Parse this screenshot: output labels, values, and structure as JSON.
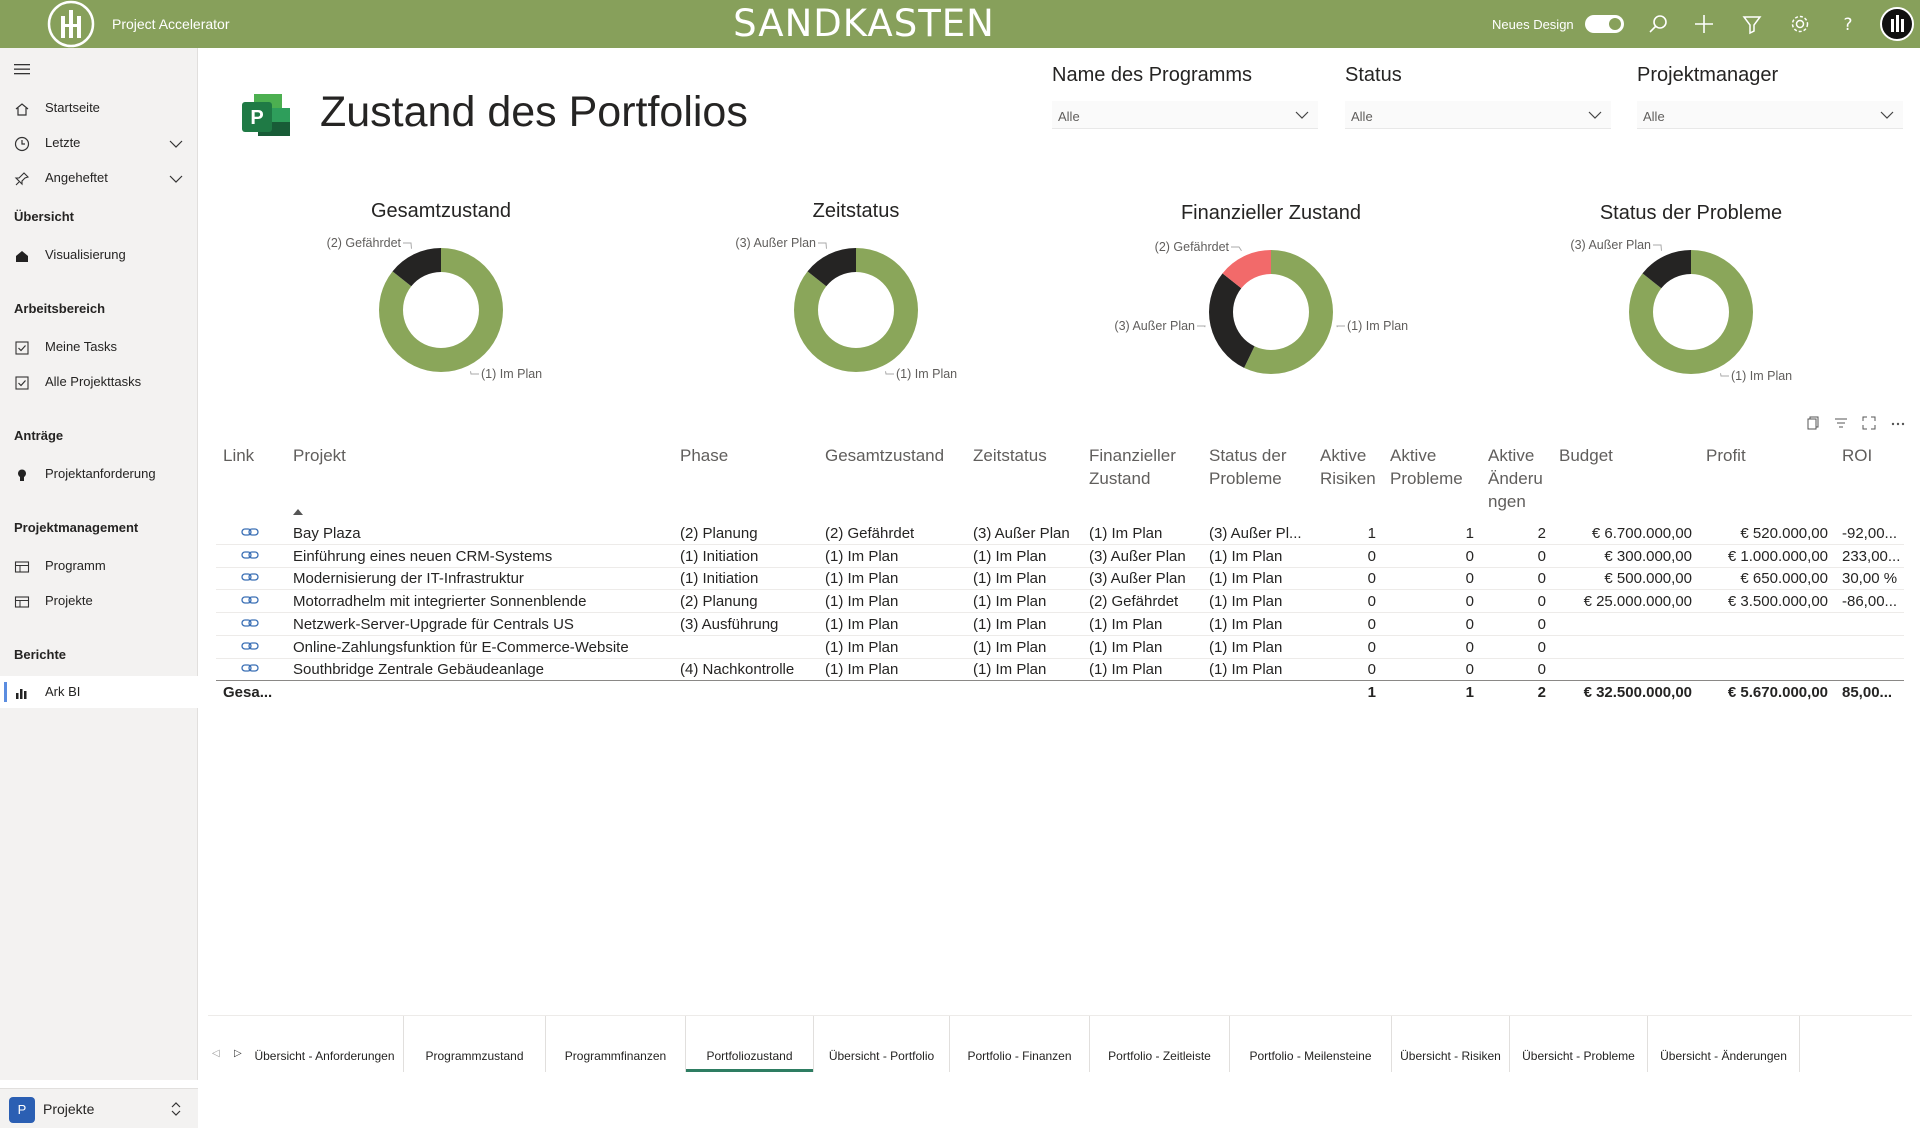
{
  "header": {
    "app_name": "Project Accelerator",
    "environment_title": "SANDKASTEN",
    "new_design_label": "Neues Design",
    "new_design_on": true,
    "icons": [
      "search-icon",
      "add-icon",
      "filter-icon",
      "gear-icon",
      "help-icon"
    ],
    "bg_color": "#87a05b"
  },
  "sidebar": {
    "items": [
      {
        "label": "Startseite",
        "icon": "home-icon"
      },
      {
        "label": "Letzte",
        "icon": "clock-icon"
      },
      {
        "label": "Angeheftet",
        "icon": "pin-icon"
      }
    ],
    "sections": [
      {
        "title": "Übersicht",
        "items": [
          {
            "label": "Visualisierung",
            "icon": "home-solid-icon"
          }
        ]
      },
      {
        "title": "Arbeitsbereich",
        "items": [
          {
            "label": "Meine Tasks",
            "icon": "checkbox-icon"
          },
          {
            "label": "Alle Projekttasks",
            "icon": "checkbox-icon"
          }
        ]
      },
      {
        "title": "Anträge",
        "items": [
          {
            "label": "Projektanforderung",
            "icon": "bulb-icon"
          }
        ]
      },
      {
        "title": "Projektmanagement",
        "items": [
          {
            "label": "Programm",
            "icon": "board-icon"
          },
          {
            "label": "Projekte",
            "icon": "board-icon"
          }
        ]
      },
      {
        "title": "Berichte",
        "items": [
          {
            "label": "Ark BI",
            "icon": "bar-chart-icon"
          }
        ]
      }
    ],
    "switcher": {
      "badge": "P",
      "label": "Projekte"
    }
  },
  "report": {
    "title": "Zustand des Portfolios",
    "filters": [
      {
        "label": "Name des Programms",
        "value": "Alle"
      },
      {
        "label": "Status",
        "value": "Alle"
      },
      {
        "label": "Projektmanager",
        "value": "Alle"
      }
    ]
  },
  "chart_data": [
    {
      "type": "pie",
      "title": "Gesamtzustand",
      "labels": [
        "(1) Im Plan",
        "(2) Gefährdet"
      ],
      "values": [
        6,
        1
      ],
      "colors": [
        "#8aa65a",
        "#252423"
      ]
    },
    {
      "type": "pie",
      "title": "Zeitstatus",
      "labels": [
        "(1) Im Plan",
        "(3) Außer Plan"
      ],
      "values": [
        6,
        1
      ],
      "colors": [
        "#8aa65a",
        "#252423"
      ]
    },
    {
      "type": "pie",
      "title": "Finanzieller Zustand",
      "labels": [
        "(1) Im Plan",
        "(3) Außer Plan",
        "(2) Gefährdet"
      ],
      "values": [
        4,
        2,
        1
      ],
      "colors": [
        "#8aa65a",
        "#252423",
        "#f26a6a"
      ]
    },
    {
      "type": "pie",
      "title": "Status der Probleme",
      "labels": [
        "(1) Im Plan",
        "(3) Außer Plan"
      ],
      "values": [
        6,
        1
      ],
      "colors": [
        "#8aa65a",
        "#252423"
      ]
    }
  ],
  "table": {
    "headers": [
      "Link",
      "Projekt",
      "Phase",
      "Gesamtzustand",
      "Zeitstatus",
      "Finanzieller Zustand",
      "Status der Probleme",
      "Aktive Risiken",
      "Aktive Probleme",
      "Aktive Änderungen",
      "Budget",
      "Profit",
      "ROI"
    ],
    "rows": [
      {
        "project": "Bay Plaza",
        "phase": "(2) Planung",
        "overall": "(2) Gefährdet",
        "time": "(3) Außer Plan",
        "financial": "(1) Im Plan",
        "issues": "(3) Außer Pl...",
        "risks": "1",
        "problems": "1",
        "changes": "2",
        "budget": "€ 6.700.000,00",
        "profit": "€ 520.000,00",
        "roi": "-92,00..."
      },
      {
        "project": "Einführung eines neuen CRM-Systems",
        "phase": "(1) Initiation",
        "overall": "(1) Im Plan",
        "time": "(1) Im Plan",
        "financial": "(3) Außer Plan",
        "issues": "(1) Im Plan",
        "risks": "0",
        "problems": "0",
        "changes": "0",
        "budget": "€ 300.000,00",
        "profit": "€ 1.000.000,00",
        "roi": "233,00..."
      },
      {
        "project": "Modernisierung der IT-Infrastruktur",
        "phase": "(1) Initiation",
        "overall": "(1) Im Plan",
        "time": "(1) Im Plan",
        "financial": "(3) Außer Plan",
        "issues": "(1) Im Plan",
        "risks": "0",
        "problems": "0",
        "changes": "0",
        "budget": "€ 500.000,00",
        "profit": "€ 650.000,00",
        "roi": "30,00 %"
      },
      {
        "project": "Motorradhelm mit integrierter Sonnenblende",
        "phase": "(2) Planung",
        "overall": "(1) Im Plan",
        "time": "(1) Im Plan",
        "financial": "(2) Gefährdet",
        "issues": "(1) Im Plan",
        "risks": "0",
        "problems": "0",
        "changes": "0",
        "budget": "€ 25.000.000,00",
        "profit": "€ 3.500.000,00",
        "roi": "-86,00..."
      },
      {
        "project": "Netzwerk-Server-Upgrade für Centrals US",
        "phase": "(3) Ausführung",
        "overall": "(1) Im Plan",
        "time": "(1) Im Plan",
        "financial": "(1) Im Plan",
        "issues": "(1) Im Plan",
        "risks": "0",
        "problems": "0",
        "changes": "0",
        "budget": "",
        "profit": "",
        "roi": ""
      },
      {
        "project": "Online-Zahlungsfunktion für E-Commerce-Website",
        "phase": "",
        "overall": "(1) Im Plan",
        "time": "(1) Im Plan",
        "financial": "(1) Im Plan",
        "issues": "(1) Im Plan",
        "risks": "0",
        "problems": "0",
        "changes": "0",
        "budget": "",
        "profit": "",
        "roi": ""
      },
      {
        "project": "Southbridge Zentrale Gebäudeanlage",
        "phase": "(4) Nachkontrolle",
        "overall": "(1) Im Plan",
        "time": "(1) Im Plan",
        "financial": "(1) Im Plan",
        "issues": "(1) Im Plan",
        "risks": "0",
        "problems": "0",
        "changes": "0",
        "budget": "",
        "profit": "",
        "roi": ""
      }
    ],
    "totals": {
      "label": "Gesa...",
      "risks": "1",
      "problems": "1",
      "changes": "2",
      "budget": "€ 32.500.000,00",
      "profit": "€ 5.670.000,00",
      "roi": "85,00..."
    }
  },
  "tabs": {
    "items": [
      "Übersicht - Anforderungen",
      "Programmzustand",
      "Programmfinanzen",
      "Portfoliozustand",
      "Übersicht - Portfolio",
      "Portfolio - Finanzen",
      "Portfolio - Zeitleiste",
      "Portfolio - Meilensteine",
      "Übersicht - Risiken",
      "Übersicht - Probleme",
      "Übersicht - Änderungen"
    ],
    "active": "Portfoliozustand",
    "accent": "#2e7d62"
  }
}
